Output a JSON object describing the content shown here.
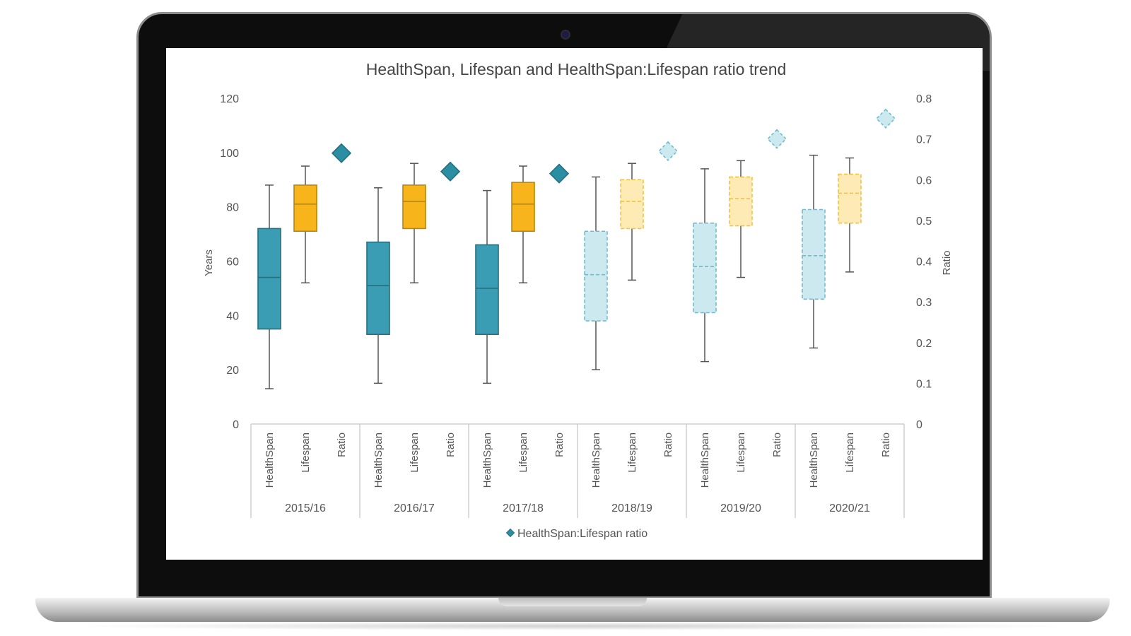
{
  "colors": {
    "healthspan": "#3b9db3",
    "healthspan_edge": "#25707f",
    "lifespan": "#f8b51b",
    "lifespan_edge": "#b8860b",
    "ratio": "#2b8ea3",
    "healthspan_light": "#cde9f0",
    "healthspan_light_edge": "#6fbdcc",
    "lifespan_light": "#fdeab4",
    "lifespan_light_edge": "#f0c24a",
    "ratio_light": "#cde9f0"
  },
  "chart_data": {
    "type": "box",
    "title": "HealthSpan, Lifespan and HealthSpan:Lifespan ratio trend",
    "ylabel": "Years",
    "y2label": "Ratio",
    "ylim": [
      0,
      120
    ],
    "y2lim": [
      0,
      0.8
    ],
    "yticks": [
      "0",
      "20",
      "40",
      "60",
      "80",
      "100",
      "120"
    ],
    "y2ticks": [
      "0",
      "0.1",
      "0.2",
      "0.3",
      "0.4",
      "0.5",
      "0.6",
      "0.7",
      "0.8"
    ],
    "category_labels": [
      "HealthSpan",
      "Lifespan",
      "Ratio"
    ],
    "legend": {
      "label": "HealthSpan:Lifespan ratio",
      "position": "bottom"
    },
    "groups": [
      {
        "label": "2015/16",
        "style": "solid",
        "healthspan": {
          "min": 13,
          "q1": 35,
          "median": 54,
          "q3": 72,
          "max": 88
        },
        "lifespan": {
          "min": 52,
          "q1": 71,
          "median": 81,
          "q3": 88,
          "max": 95
        },
        "ratio": 0.665
      },
      {
        "label": "2016/17",
        "style": "solid",
        "healthspan": {
          "min": 15,
          "q1": 33,
          "median": 51,
          "q3": 67,
          "max": 87
        },
        "lifespan": {
          "min": 52,
          "q1": 72,
          "median": 82,
          "q3": 88,
          "max": 96
        },
        "ratio": 0.62
      },
      {
        "label": "2017/18",
        "style": "solid",
        "healthspan": {
          "min": 15,
          "q1": 33,
          "median": 50,
          "q3": 66,
          "max": 86
        },
        "lifespan": {
          "min": 52,
          "q1": 71,
          "median": 81,
          "q3": 89,
          "max": 95
        },
        "ratio": 0.615
      },
      {
        "label": "2018/19",
        "style": "dashed",
        "healthspan": {
          "min": 20,
          "q1": 38,
          "median": 55,
          "q3": 71,
          "max": 91
        },
        "lifespan": {
          "min": 53,
          "q1": 72,
          "median": 82,
          "q3": 90,
          "max": 96
        },
        "ratio": 0.67
      },
      {
        "label": "2019/20",
        "style": "dashed",
        "healthspan": {
          "min": 23,
          "q1": 41,
          "median": 58,
          "q3": 74,
          "max": 94
        },
        "lifespan": {
          "min": 54,
          "q1": 73,
          "median": 83,
          "q3": 91,
          "max": 97
        },
        "ratio": 0.7
      },
      {
        "label": "2020/21",
        "style": "dashed",
        "healthspan": {
          "min": 28,
          "q1": 46,
          "median": 62,
          "q3": 79,
          "max": 99
        },
        "lifespan": {
          "min": 56,
          "q1": 74,
          "median": 85,
          "q3": 92,
          "max": 98
        },
        "ratio": 0.75
      }
    ]
  }
}
